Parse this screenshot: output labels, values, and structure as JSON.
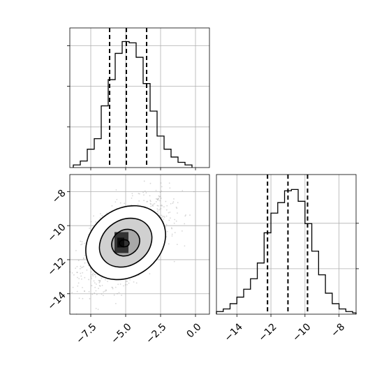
{
  "chart_data": [
    {
      "type": "bar",
      "panel": "hist-x",
      "bins": [
        -8.75,
        -8.25,
        -7.75,
        -7.25,
        -6.75,
        -6.25,
        -5.75,
        -5.25,
        -4.75,
        -4.25,
        -3.75,
        -3.25,
        -2.75,
        -2.25,
        -1.75,
        -1.25,
        -0.75,
        -0.25
      ],
      "counts": [
        0.02,
        0.05,
        0.14,
        0.22,
        0.47,
        0.67,
        0.87,
        0.96,
        0.95,
        0.84,
        0.64,
        0.43,
        0.24,
        0.14,
        0.08,
        0.04,
        0.02
      ],
      "quantiles": [
        -6.15,
        -4.95,
        -3.5
      ],
      "xlim": [
        -9,
        1
      ],
      "grid": true
    },
    {
      "type": "scatter",
      "panel": "joint",
      "xlim": [
        -9,
        1
      ],
      "ylim": [
        -15.2,
        -7
      ],
      "x_ticks": [
        -7.5,
        -5.0,
        -2.5,
        0.0
      ],
      "x_tick_labels": [
        "−7.5",
        "−5.0",
        "−2.5",
        "0.0"
      ],
      "y_ticks": [
        -8,
        -10,
        -12,
        -14
      ],
      "y_tick_labels": [
        "−8",
        "−10",
        "−12",
        "−14"
      ],
      "center": [
        -5.0,
        -11.0
      ],
      "density_peak": [
        -5.2,
        -11.2
      ],
      "contours": [
        {
          "level": 0.39,
          "rx": 1.0,
          "ry": 0.95
        },
        {
          "level": 0.86,
          "rx": 1.9,
          "ry": 1.7
        },
        {
          "level": 0.99,
          "rx": 2.9,
          "ry": 2.55
        }
      ],
      "grid": true
    },
    {
      "type": "bar",
      "panel": "hist-y",
      "bins": [
        -15.2,
        -14.8,
        -14.4,
        -14.0,
        -13.6,
        -13.2,
        -12.8,
        -12.4,
        -12.0,
        -11.6,
        -11.2,
        -10.8,
        -10.4,
        -10.0,
        -9.6,
        -9.2,
        -8.8,
        -8.4,
        -8.0,
        -7.6,
        -7.2,
        -7.0
      ],
      "counts": [
        0.02,
        0.04,
        0.08,
        0.13,
        0.19,
        0.27,
        0.39,
        0.62,
        0.77,
        0.85,
        0.94,
        0.95,
        0.86,
        0.69,
        0.48,
        0.3,
        0.16,
        0.08,
        0.04,
        0.02,
        0.01
      ],
      "quantiles": [
        -12.2,
        -11.0,
        -9.85
      ],
      "xlim": [
        -15.2,
        -7
      ],
      "x_ticks": [
        -14,
        -12,
        -10,
        -8
      ],
      "x_tick_labels": [
        "−14",
        "−12",
        "−10",
        "−8"
      ],
      "grid": true
    }
  ]
}
